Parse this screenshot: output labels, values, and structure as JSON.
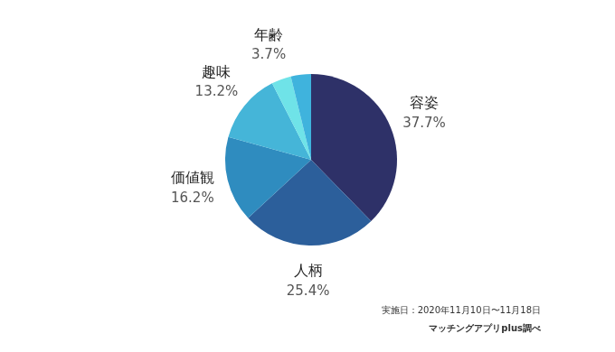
{
  "chart_data": {
    "type": "pie",
    "categories": [
      "容姿",
      "人柄",
      "価値観",
      "趣味",
      "年齢",
      null
    ],
    "values": [
      37.7,
      25.4,
      16.2,
      13.2,
      3.7,
      3.8
    ],
    "value_labels": [
      "37.7%",
      "25.4%",
      "16.2%",
      "13.2%",
      "3.7%",
      null
    ],
    "colors": [
      "#2e3168",
      "#2c5f9b",
      "#2f8cbf",
      "#45b5d8",
      "#6fe3e8",
      "#3fb3dd"
    ],
    "data_labels": true,
    "annotations": [
      "実施日：2020年11月10日〜11月18日",
      "マッチングアプリplus調べ"
    ]
  }
}
